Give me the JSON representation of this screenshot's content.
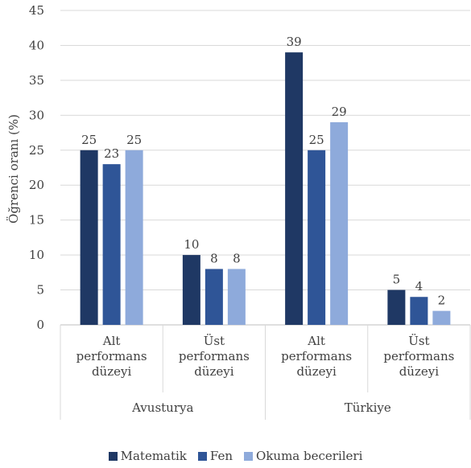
{
  "chart_data": {
    "type": "bar",
    "ylabel": "Öğrenci oranı (%)",
    "ylim": [
      0,
      45
    ],
    "yticks": [
      0,
      5,
      10,
      15,
      20,
      25,
      30,
      35,
      40,
      45
    ],
    "grid": true,
    "legend_position": "bottom",
    "groups": [
      {
        "name": "Avusturya",
        "categories": [
          "Alt\nperformans\ndüzeyi",
          "Üst\nperformans\ndüzeyi"
        ]
      },
      {
        "name": "Türkiye",
        "categories": [
          "Alt\nperformans\ndüzeyi",
          "Üst\nperformans\ndüzeyi"
        ]
      }
    ],
    "series": [
      {
        "name": "Matematik",
        "color": "#1f3864",
        "values": [
          25,
          10,
          39,
          5
        ]
      },
      {
        "name": "Fen",
        "color": "#2f5597",
        "values": [
          23,
          8,
          25,
          4
        ]
      },
      {
        "name": "Okuma becerileri",
        "color": "#8eaadb",
        "values": [
          25,
          8,
          29,
          2
        ]
      }
    ]
  }
}
